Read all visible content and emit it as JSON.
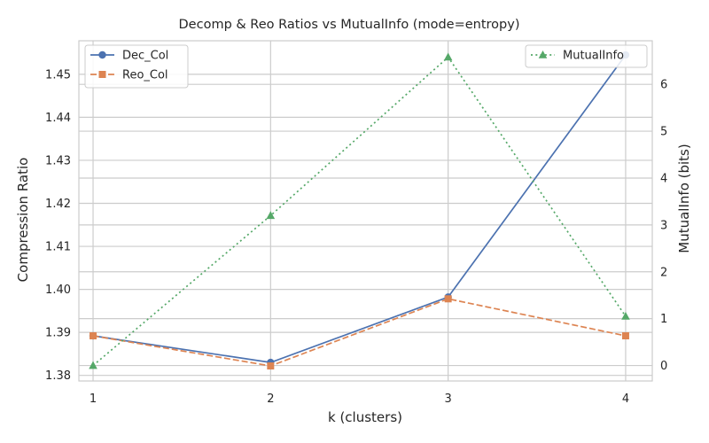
{
  "chart_data": {
    "type": "line",
    "title": "Decomp & Reo Ratios vs MutualInfo (mode=entropy)",
    "xlabel": "k (clusters)",
    "ylabel": "Compression Ratio",
    "y2label": "MutualInfo (bits)",
    "x": [
      1,
      2,
      3,
      4
    ],
    "x_ticks": [
      "1",
      "2",
      "3",
      "4"
    ],
    "xlim": [
      0.92,
      4.15
    ],
    "ylim": [
      1.3787,
      1.4578
    ],
    "y2lim": [
      -0.33,
      6.93
    ],
    "y_ticks": [
      "1.38",
      "1.39",
      "1.40",
      "1.41",
      "1.42",
      "1.43",
      "1.44",
      "1.45"
    ],
    "y_tick_values": [
      1.38,
      1.39,
      1.4,
      1.41,
      1.42,
      1.43,
      1.44,
      1.45
    ],
    "y2_ticks": [
      "0",
      "1",
      "2",
      "3",
      "4",
      "5",
      "6"
    ],
    "y2_tick_values": [
      0,
      1,
      2,
      3,
      4,
      5,
      6
    ],
    "grid": true,
    "series": [
      {
        "name": "Dec_Col",
        "values": [
          1.3892,
          1.383,
          1.3982,
          1.4545
        ],
        "color": "#4c72b0",
        "marker": "circle",
        "linestyle": "solid",
        "axis": "left"
      },
      {
        "name": "Reo_Col",
        "values": [
          1.3892,
          1.3822,
          1.3978,
          1.3892
        ],
        "color": "#dd8452",
        "marker": "square",
        "linestyle": "dashed",
        "axis": "left"
      },
      {
        "name": "MutualInfo",
        "values": [
          0.0,
          3.2,
          6.58,
          1.05
        ],
        "color": "#55a868",
        "marker": "triangle",
        "linestyle": "dotted",
        "axis": "right"
      }
    ],
    "legend_left": {
      "placement": "top-left",
      "entries": [
        "Dec_Col",
        "Reo_Col"
      ]
    },
    "legend_right": {
      "placement": "top-right",
      "entries": [
        "MutualInfo"
      ]
    }
  }
}
